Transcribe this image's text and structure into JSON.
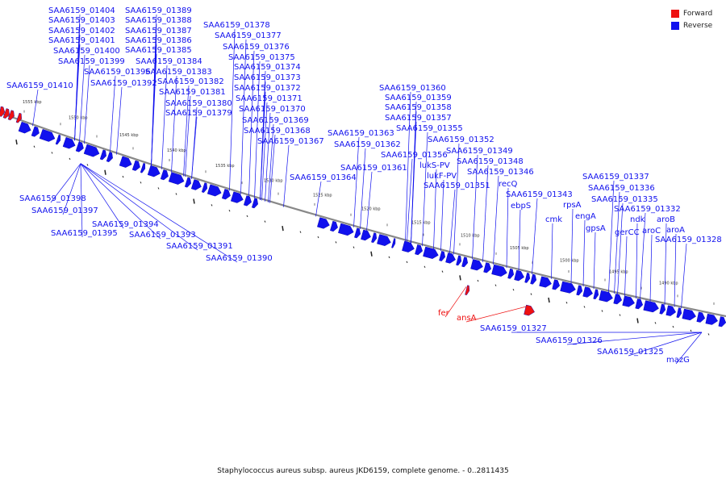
{
  "legend": {
    "forward": {
      "label": "Forward",
      "color": "#ee1111"
    },
    "reverse": {
      "label": "Reverse",
      "color": "#1111ee"
    }
  },
  "caption": "Staphylococcus aureus subsp. aureus JKD6159, complete genome. - 0..2811435",
  "colors": {
    "forward": "#ee1111",
    "reverse": "#1111ee",
    "backbone": "#777777",
    "tick": "#222222"
  },
  "kbp_ticks": [
    "1555 kbp",
    "1550 kbp",
    "1545 kbp",
    "1540 kbp",
    "1535 kbp",
    "1530 kbp",
    "1525 kbp",
    "1520 kbp",
    "1515 kbp",
    "1510 kbp",
    "1505 kbp",
    "1500 kbp",
    "1495 kbp",
    "1490 kbp"
  ],
  "upper_labels": [
    "SAA6159_01404",
    "SAA6159_01403",
    "SAA6159_01402",
    "SAA6159_01401",
    "SAA6159_01400",
    "SAA6159_01399",
    "SAA6159_01410",
    "SAA6159_01396",
    "SAA6159_01389",
    "SAA6159_01388",
    "SAA6159_01387",
    "SAA6159_01386",
    "SAA6159_01385",
    "SAA6159_01384",
    "SAA6159_01383",
    "SAA6159_01392",
    "SAA6159_01382",
    "SAA6159_01381",
    "SAA6159_01380",
    "SAA6159_01379",
    "SAA6159_01378",
    "SAA6159_01377",
    "SAA6159_01376",
    "SAA6159_01375",
    "SAA6159_01374",
    "SAA6159_01373",
    "SAA6159_01372",
    "SAA6159_01371",
    "SAA6159_01370",
    "SAA6159_01369",
    "SAA6159_01368",
    "SAA6159_01367",
    "SAA6159_01364",
    "SAA6159_01363",
    "SAA6159_01362",
    "SAA6159_01361",
    "SAA6159_01360",
    "SAA6159_01359",
    "SAA6159_01358",
    "SAA6159_01357",
    "SAA6159_01355",
    "SAA6159_01356",
    "SAA6159_01352",
    "SAA6159_01349",
    "lukS-PV",
    "SAA6159_01348",
    "lukF-PV",
    "SAA6159_01346",
    "SAA6159_01351",
    "recQ",
    "SAA6159_01343",
    "ebpS",
    "cmk",
    "rpsA",
    "engA",
    "gpsA",
    "SAA6159_01337",
    "SAA6159_01336",
    "SAA6159_01335",
    "SAA6159_01332",
    "ndk",
    "gerCC",
    "aroC",
    "aroB",
    "aroA",
    "SAA6159_01328"
  ],
  "lower_labels": [
    "SAA6159_01398",
    "SAA6159_01397",
    "SAA6159_01395",
    "SAA6159_01394",
    "SAA6159_01393",
    "SAA6159_01391",
    "SAA6159_01390"
  ],
  "forward_labels": [
    "fer",
    "ansA"
  ],
  "bottom_labels": [
    "SAA6159_01327",
    "SAA6159_01326",
    "SAA6159_01325",
    "mazG"
  ]
}
